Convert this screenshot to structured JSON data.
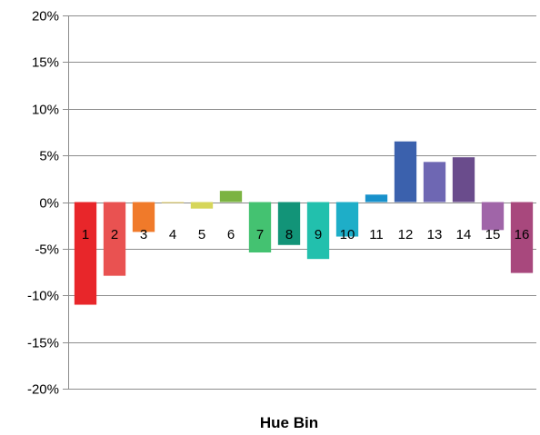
{
  "chart_data": {
    "type": "bar",
    "title": "",
    "xlabel": "Hue Bin",
    "ylabel": "",
    "ylim": [
      -20,
      20
    ],
    "yticks": [
      20,
      15,
      10,
      5,
      0,
      -5,
      -10,
      -15,
      -20
    ],
    "ytick_labels": [
      "20%",
      "15%",
      "10%",
      "5%",
      "0%",
      "-5%",
      "-10%",
      "-15%",
      "-20%"
    ],
    "grid": true,
    "legend": "none",
    "categories": [
      "1",
      "2",
      "3",
      "4",
      "5",
      "6",
      "7",
      "8",
      "9",
      "10",
      "11",
      "12",
      "13",
      "14",
      "15",
      "16"
    ],
    "values": [
      -11.0,
      -7.9,
      -3.2,
      -0.1,
      -0.7,
      1.2,
      -5.4,
      -4.6,
      -6.1,
      -3.7,
      0.8,
      6.5,
      4.3,
      4.8,
      -3.0,
      -7.6
    ],
    "colors": [
      "#e8262a",
      "#e95251",
      "#f07a2a",
      "#e9d46a",
      "#d6d65a",
      "#7bb342",
      "#44c271",
      "#129478",
      "#22c0ad",
      "#1eaec8",
      "#1891cb",
      "#3b61ad",
      "#6e67b3",
      "#6a4c8c",
      "#a065a8",
      "#a8487d"
    ]
  }
}
